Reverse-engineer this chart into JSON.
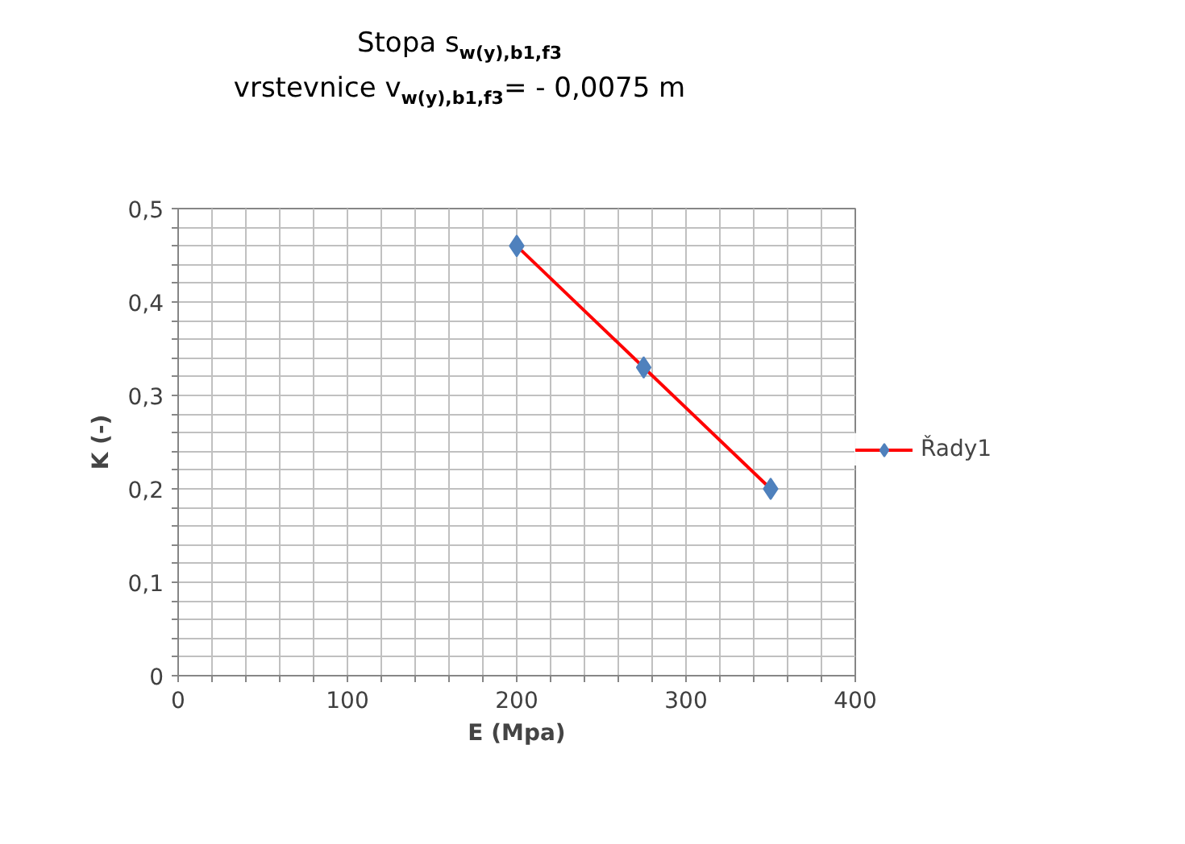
{
  "chart_data": {
    "type": "line",
    "title": "Stopa s$_{w(y),b1,f3}$\nvrstevnice v$_{w(y),b1,f3}$= - 0,0075 m",
    "xlabel": "E (Mpa)",
    "ylabel": "K (-)",
    "series": [
      {
        "name": "Řady1",
        "color": "#ff0000",
        "colors": [
          "#4f81bd",
          "#4f81bd",
          "#4f81bd"
        ],
        "x": [
          200,
          275,
          350
        ],
        "values": [
          0.46,
          0.33,
          0.2
        ]
      }
    ],
    "marker": "diamond",
    "line_style": "solid",
    "grid": true,
    "legend": "right",
    "xlim": [
      0,
      400
    ],
    "ylim": [
      0,
      0.5
    ],
    "xticks": [
      0,
      {
        "value": 20,
        "label": null
      },
      {
        "value": 40,
        "label": null
      },
      {
        "value": 60,
        "label": null
      },
      {
        "value": 80,
        "label": null
      },
      100,
      {
        "value": 120,
        "label": null
      },
      {
        "value": 140,
        "label": null
      },
      {
        "value": 160,
        "label": null
      },
      {
        "value": 180,
        "label": null
      },
      200,
      {
        "value": 220,
        "label": null
      },
      {
        "value": 240,
        "label": null
      },
      {
        "value": 260,
        "label": null
      },
      {
        "value": 280,
        "label": null
      },
      300,
      {
        "value": 320,
        "label": null
      },
      {
        "value": 340,
        "label": null
      },
      {
        "value": 360,
        "label": null
      },
      {
        "value": 380,
        "label": null
      },
      400
    ],
    "yticks": [
      {
        "value": 0,
        "label": "0"
      },
      {
        "value": 0.02,
        "label": null
      },
      {
        "value": 0.04,
        "label": null
      },
      {
        "value": 0.06,
        "label": null
      },
      {
        "value": 0.08,
        "label": null
      },
      {
        "value": 0.1,
        "label": "0,1"
      },
      {
        "value": 0.12,
        "label": null
      },
      {
        "value": 0.14,
        "label": null
      },
      {
        "value": 0.16,
        "label": null
      },
      {
        "value": 0.18,
        "label": null
      },
      {
        "value": 0.2,
        "label": "0,2"
      },
      {
        "value": 0.22,
        "label": null
      },
      {
        "value": 0.24,
        "label": null
      },
      {
        "value": 0.26,
        "label": null
      },
      {
        "value": 0.28,
        "label": null
      },
      {
        "value": 0.3,
        "label": "0,3"
      },
      {
        "value": 0.32,
        "label": null
      },
      {
        "value": 0.34,
        "label": null
      },
      {
        "value": 0.36,
        "label": null
      },
      {
        "value": 0.38,
        "label": null
      },
      {
        "value": 0.4,
        "label": "0,4"
      },
      {
        "value": 0.42,
        "label": null
      },
      {
        "value": 0.44,
        "label": null
      },
      {
        "value": 0.46,
        "label": null
      },
      {
        "value": 0.48,
        "label": null
      },
      {
        "value": 0.5,
        "label": "0,5"
      }
    ]
  }
}
